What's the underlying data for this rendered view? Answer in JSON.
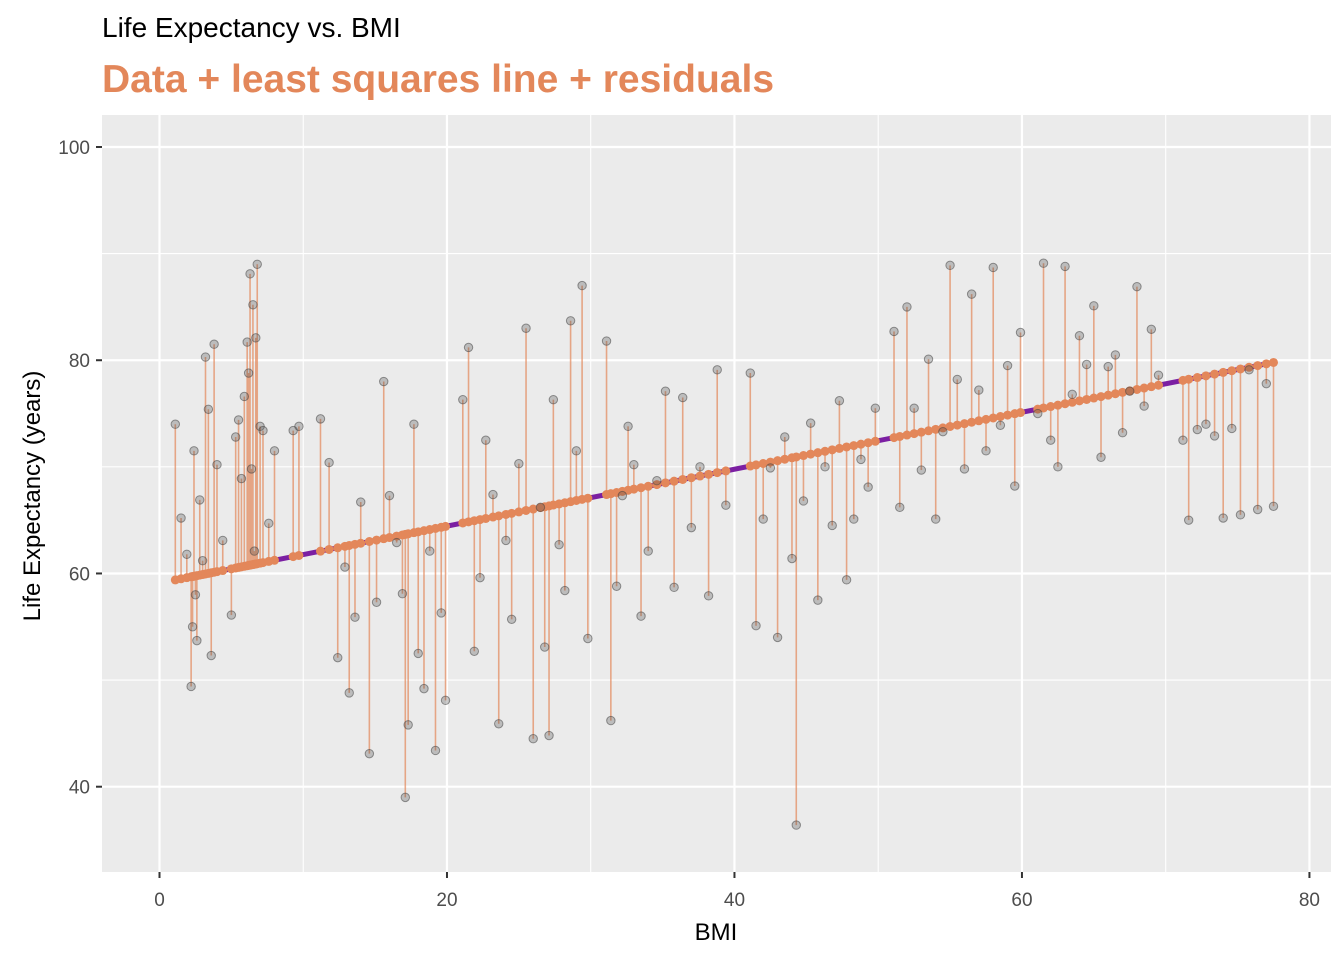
{
  "chart_data": {
    "type": "scatter",
    "title": "Life Expectancy vs. BMI",
    "subtitle": "Data + least squares line + residuals",
    "xlabel": "BMI",
    "ylabel": "Life Expectancy (years)",
    "xlim": [
      -4,
      81.5
    ],
    "ylim": [
      32,
      103
    ],
    "xticks": [
      0,
      20,
      40,
      60,
      80
    ],
    "yticks": [
      40,
      60,
      80,
      100
    ],
    "grid": true,
    "legend": "none",
    "colors": {
      "panel": "#ebebeb",
      "grid": "#ffffff",
      "points": "#444444",
      "residuals": "#e3875a",
      "fitted": "#e3875a",
      "line": "#7b1fa2",
      "subtitle": "#e3875a"
    },
    "regression": {
      "intercept": 59.1,
      "slope": 0.267
    },
    "series": [
      {
        "x": [
          1.1,
          1.5,
          1.9,
          2.2,
          2.3,
          2.4,
          2.5,
          2.6,
          2.8,
          3.0,
          3.2,
          3.4,
          3.6,
          3.8,
          4.0,
          4.4,
          5.0,
          5.3,
          5.5,
          5.7,
          5.9,
          6.1,
          6.2,
          6.3,
          6.4,
          6.5,
          6.6,
          6.7,
          6.8,
          7.0,
          7.2,
          7.6,
          8.0,
          9.3,
          9.7,
          11.2,
          11.8,
          12.4,
          12.9,
          13.2,
          13.6,
          14.0,
          14.6,
          15.1,
          15.6,
          16.0,
          16.5,
          16.9,
          17.1,
          17.3,
          17.7,
          18.0,
          18.4,
          18.8,
          19.2,
          19.6,
          19.9,
          21.1,
          21.5,
          21.9,
          22.3,
          22.7,
          23.2,
          23.6,
          24.1,
          24.5,
          25.0,
          25.5,
          26.0,
          26.5,
          26.8,
          27.1,
          27.4,
          27.8,
          28.2,
          28.6,
          29.0,
          29.4,
          29.8,
          31.1,
          31.4,
          31.8,
          32.2,
          32.6,
          33.0,
          33.5,
          34.0,
          34.6,
          35.2,
          35.8,
          36.4,
          37.0,
          37.6,
          38.2,
          38.8,
          39.4,
          41.1,
          41.5,
          42.0,
          42.5,
          43.0,
          43.5,
          44.0,
          44.3,
          44.8,
          45.3,
          45.8,
          46.3,
          46.8,
          47.3,
          47.8,
          48.3,
          48.8,
          49.3,
          49.8,
          51.1,
          51.5,
          52.0,
          52.5,
          53.0,
          53.5,
          54.0,
          54.5,
          55.0,
          55.5,
          56.0,
          56.5,
          57.0,
          57.5,
          58.0,
          58.5,
          59.0,
          59.5,
          59.9,
          61.1,
          61.5,
          62.0,
          62.5,
          63.0,
          63.5,
          64.0,
          64.5,
          65.0,
          65.5,
          66.0,
          66.5,
          67.0,
          67.5,
          68.0,
          68.5,
          69.0,
          69.5,
          71.2,
          71.6,
          72.2,
          72.8,
          73.4,
          74.0,
          74.6,
          75.2,
          75.8,
          76.4,
          77.0,
          77.5
        ],
        "y": [
          74.0,
          65.2,
          61.8,
          49.4,
          55.0,
          71.5,
          58.0,
          53.7,
          66.9,
          61.2,
          80.3,
          75.4,
          52.3,
          81.5,
          70.2,
          63.1,
          56.1,
          72.8,
          74.4,
          68.9,
          76.6,
          81.7,
          78.8,
          88.1,
          69.8,
          85.2,
          62.1,
          82.1,
          89.0,
          73.8,
          73.4,
          64.7,
          71.5,
          73.4,
          73.8,
          74.5,
          70.4,
          52.1,
          60.6,
          48.8,
          55.9,
          66.7,
          43.1,
          57.3,
          78.0,
          67.3,
          62.9,
          58.1,
          39.0,
          45.8,
          74.0,
          52.5,
          49.2,
          62.1,
          43.4,
          56.3,
          48.1,
          76.3,
          81.2,
          52.7,
          59.6,
          72.5,
          67.4,
          45.9,
          63.1,
          55.7,
          70.3,
          83.0,
          44.5,
          66.2,
          53.1,
          44.8,
          76.3,
          62.7,
          58.4,
          83.7,
          71.5,
          87.0,
          53.9,
          81.8,
          46.2,
          58.8,
          67.3,
          73.8,
          70.2,
          56.0,
          62.1,
          68.7,
          77.1,
          58.7,
          76.5,
          64.3,
          70.0,
          57.9,
          79.1,
          66.4,
          78.8,
          55.1,
          65.1,
          69.9,
          54.0,
          72.8,
          61.4,
          36.4,
          66.8,
          74.1,
          57.5,
          70.0,
          64.5,
          76.2,
          59.4,
          65.1,
          70.7,
          68.1,
          75.5,
          82.7,
          66.2,
          85.0,
          75.5,
          69.7,
          80.1,
          65.1,
          73.3,
          88.9,
          78.2,
          69.8,
          86.2,
          77.2,
          71.5,
          88.7,
          73.9,
          79.5,
          68.2,
          82.6,
          75.0,
          89.1,
          72.5,
          70.0,
          88.8,
          76.8,
          82.3,
          79.6,
          85.1,
          70.9,
          79.4,
          80.5,
          73.2,
          77.1,
          86.9,
          75.7,
          82.9,
          78.6,
          72.5,
          65.0,
          73.5,
          74.0,
          72.9,
          65.2,
          73.6,
          65.5,
          79.1,
          66.0,
          77.8,
          66.3
        ]
      }
    ]
  }
}
